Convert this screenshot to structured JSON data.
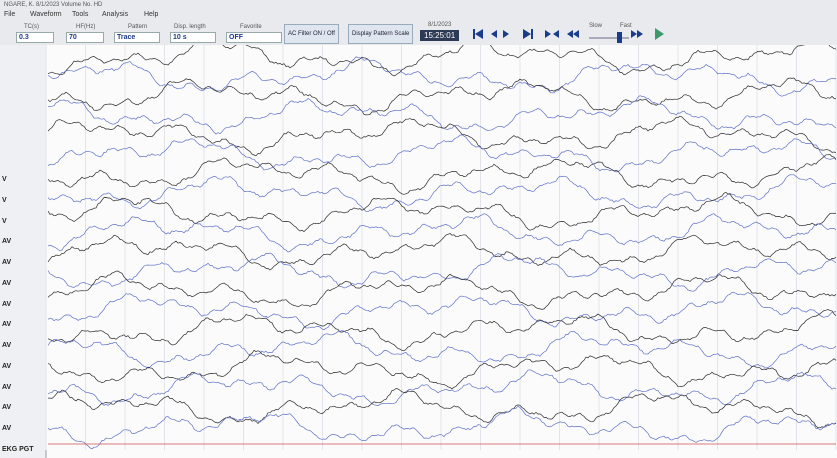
{
  "window": {
    "title": "NGARE, K.   8/1/2023   Volume No. HD"
  },
  "menu": [
    "File",
    "Waveform",
    "Tools",
    "Analysis",
    "Help"
  ],
  "toolbar": {
    "tc": {
      "label": "TC(s)",
      "value": "0.3"
    },
    "hf": {
      "label": "HF(Hz)",
      "value": "70"
    },
    "pattern": {
      "label": "Pattern",
      "value": "Trace"
    },
    "disp_length": {
      "label": "Disp. length",
      "value": "10 s"
    },
    "favorite": {
      "label": "Favorite",
      "value": "OFF"
    },
    "ac_filter": "AC Filter ON / Off",
    "display_scale": "Display Pattern Scale",
    "date": "8/1/2023",
    "time": "15:25:01",
    "slow": "Slow",
    "fast": "Fast"
  },
  "channels": [
    "V",
    "V",
    "V",
    "AV",
    "AV",
    "AV",
    "AV",
    "AV",
    "AV",
    "AV",
    "AV",
    "AV",
    "AV",
    "EKG PGT"
  ]
}
